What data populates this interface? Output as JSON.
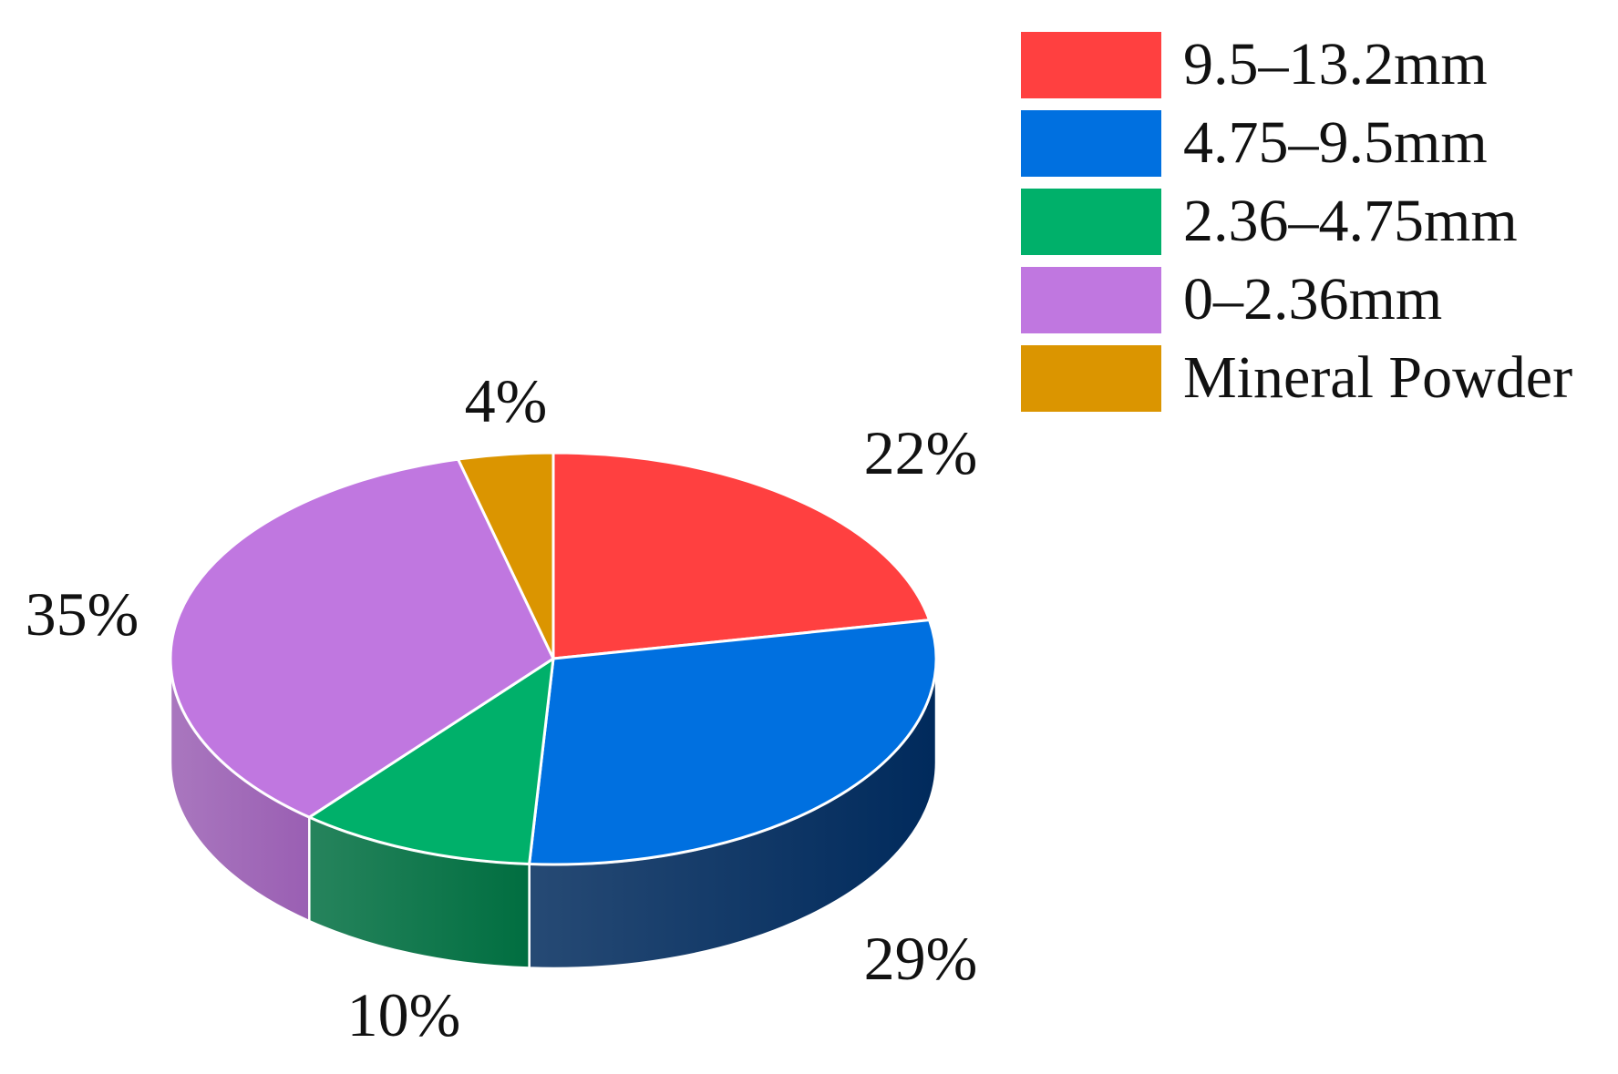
{
  "chart_data": {
    "type": "pie",
    "style": "3d",
    "slices": [
      {
        "name": "9.5–13.2mm",
        "value": 22,
        "label": "22%",
        "color": "#FF4040",
        "side_color": "#B3262A"
      },
      {
        "name": "4.75–9.5mm",
        "value": 29,
        "label": "29%",
        "color": "#0070E0",
        "side_color": "#002A5C"
      },
      {
        "name": "2.36–4.75mm",
        "value": 10,
        "label": "10%",
        "color": "#00B06A",
        "side_color": "#006E40"
      },
      {
        "name": "0–2.36mm",
        "value": 35,
        "label": "35%",
        "color": "#C077E0",
        "side_color": "#9A5FB3"
      },
      {
        "name": "Mineral Powder",
        "value": 4,
        "label": "4%",
        "color": "#DB9500",
        "side_color": "#9E6B00"
      }
    ],
    "legend_placement": "top-right",
    "title": ""
  }
}
